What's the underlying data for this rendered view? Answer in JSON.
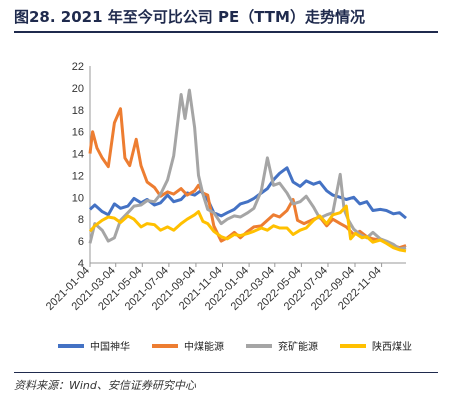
{
  "figure_title": "图28. 2021 年至今可比公司 PE（TTM）走势情况",
  "source_note": "资料来源：Wind、安信证券研究中心",
  "chart_data": {
    "type": "line",
    "title": "",
    "xlabel": "",
    "ylabel": "",
    "ylim": [
      4,
      22
    ],
    "yticks": [
      4,
      6,
      8,
      10,
      12,
      14,
      16,
      18,
      20,
      22
    ],
    "xlim": [
      "2021-01-04",
      "2022-12-30"
    ],
    "xticks": [
      "2021-01-04",
      "2021-03-04",
      "2021-05-04",
      "2021-07-04",
      "2021-09-04",
      "2021-11-04",
      "2022-01-04",
      "2022-03-04",
      "2022-05-04",
      "2022-07-04",
      "2022-09-04",
      "2022-11-04"
    ],
    "grid": false,
    "legend_position": "bottom",
    "series": [
      {
        "name": "中国神华",
        "color": "#4472C4",
        "points": [
          [
            "2021-01-04",
            8.9
          ],
          [
            "2021-01-15",
            9.3
          ],
          [
            "2021-02-01",
            8.7
          ],
          [
            "2021-02-15",
            8.4
          ],
          [
            "2021-03-01",
            9.4
          ],
          [
            "2021-03-15",
            9.0
          ],
          [
            "2021-04-01",
            9.2
          ],
          [
            "2021-04-15",
            9.9
          ],
          [
            "2021-05-01",
            9.5
          ],
          [
            "2021-05-15",
            9.8
          ],
          [
            "2021-06-01",
            9.3
          ],
          [
            "2021-06-15",
            9.5
          ],
          [
            "2021-07-01",
            10.2
          ],
          [
            "2021-07-15",
            9.6
          ],
          [
            "2021-08-01",
            9.8
          ],
          [
            "2021-08-15",
            10.4
          ],
          [
            "2021-09-01",
            10.2
          ],
          [
            "2021-09-15",
            10.6
          ],
          [
            "2021-10-01",
            9.8
          ],
          [
            "2021-10-15",
            8.6
          ],
          [
            "2021-11-01",
            8.3
          ],
          [
            "2021-11-15",
            8.6
          ],
          [
            "2021-12-01",
            8.9
          ],
          [
            "2021-12-15",
            9.4
          ],
          [
            "2022-01-01",
            9.6
          ],
          [
            "2022-01-15",
            9.9
          ],
          [
            "2022-02-01",
            10.4
          ],
          [
            "2022-02-15",
            10.8
          ],
          [
            "2022-03-01",
            11.6
          ],
          [
            "2022-03-15",
            12.2
          ],
          [
            "2022-04-01",
            12.7
          ],
          [
            "2022-04-15",
            11.4
          ],
          [
            "2022-05-01",
            11.0
          ],
          [
            "2022-05-15",
            11.5
          ],
          [
            "2022-06-01",
            11.2
          ],
          [
            "2022-06-15",
            11.4
          ],
          [
            "2022-07-01",
            10.6
          ],
          [
            "2022-07-15",
            10.2
          ],
          [
            "2022-08-01",
            10.0
          ],
          [
            "2022-08-15",
            9.8
          ],
          [
            "2022-09-01",
            10.0
          ],
          [
            "2022-09-15",
            9.4
          ],
          [
            "2022-10-01",
            9.6
          ],
          [
            "2022-10-15",
            8.8
          ],
          [
            "2022-11-01",
            8.9
          ],
          [
            "2022-11-15",
            8.8
          ],
          [
            "2022-12-01",
            8.5
          ],
          [
            "2022-12-15",
            8.6
          ],
          [
            "2022-12-30",
            8.1
          ]
        ]
      },
      {
        "name": "中煤能源",
        "color": "#ED7D31",
        "points": [
          [
            "2021-01-04",
            14.0
          ],
          [
            "2021-01-10",
            16.0
          ],
          [
            "2021-01-20",
            14.5
          ],
          [
            "2021-02-01",
            13.6
          ],
          [
            "2021-02-15",
            12.8
          ],
          [
            "2021-03-01",
            16.8
          ],
          [
            "2021-03-15",
            18.1
          ],
          [
            "2021-03-25",
            13.6
          ],
          [
            "2021-04-05",
            12.9
          ],
          [
            "2021-04-20",
            15.3
          ],
          [
            "2021-05-01",
            12.9
          ],
          [
            "2021-05-15",
            11.4
          ],
          [
            "2021-06-01",
            10.9
          ],
          [
            "2021-06-15",
            10.1
          ],
          [
            "2021-07-01",
            10.5
          ],
          [
            "2021-07-15",
            10.3
          ],
          [
            "2021-08-01",
            10.8
          ],
          [
            "2021-08-15",
            10.2
          ],
          [
            "2021-09-01",
            10.6
          ],
          [
            "2021-09-10",
            11.1
          ],
          [
            "2021-09-20",
            10.4
          ],
          [
            "2021-10-01",
            10.2
          ],
          [
            "2021-10-15",
            7.4
          ],
          [
            "2021-11-01",
            6.0
          ],
          [
            "2021-11-15",
            6.3
          ],
          [
            "2021-12-01",
            6.8
          ],
          [
            "2021-12-15",
            6.3
          ],
          [
            "2022-01-01",
            6.9
          ],
          [
            "2022-01-15",
            7.3
          ],
          [
            "2022-02-01",
            7.4
          ],
          [
            "2022-02-15",
            7.9
          ],
          [
            "2022-03-01",
            8.4
          ],
          [
            "2022-03-15",
            8.2
          ],
          [
            "2022-04-01",
            8.8
          ],
          [
            "2022-04-15",
            9.8
          ],
          [
            "2022-04-25",
            7.9
          ],
          [
            "2022-05-10",
            7.6
          ],
          [
            "2022-06-01",
            8.0
          ],
          [
            "2022-06-15",
            8.2
          ],
          [
            "2022-07-01",
            7.4
          ],
          [
            "2022-07-15",
            8.0
          ],
          [
            "2022-08-01",
            7.6
          ],
          [
            "2022-08-15",
            7.3
          ],
          [
            "2022-09-01",
            6.6
          ],
          [
            "2022-09-15",
            6.9
          ],
          [
            "2022-10-01",
            6.4
          ],
          [
            "2022-10-15",
            6.2
          ],
          [
            "2022-11-01",
            6.1
          ],
          [
            "2022-11-15",
            5.9
          ],
          [
            "2022-12-01",
            5.6
          ],
          [
            "2022-12-15",
            5.4
          ],
          [
            "2022-12-30",
            5.6
          ]
        ]
      },
      {
        "name": "兖矿能源",
        "color": "#A5A5A5",
        "points": [
          [
            "2021-01-04",
            5.8
          ],
          [
            "2021-01-15",
            7.6
          ],
          [
            "2021-02-01",
            7.0
          ],
          [
            "2021-02-15",
            6.0
          ],
          [
            "2021-03-01",
            6.3
          ],
          [
            "2021-03-15",
            7.9
          ],
          [
            "2021-04-01",
            8.6
          ],
          [
            "2021-04-15",
            9.2
          ],
          [
            "2021-05-01",
            9.3
          ],
          [
            "2021-05-15",
            9.7
          ],
          [
            "2021-06-01",
            9.6
          ],
          [
            "2021-06-15",
            10.3
          ],
          [
            "2021-07-01",
            11.6
          ],
          [
            "2021-07-15",
            13.8
          ],
          [
            "2021-08-01",
            19.4
          ],
          [
            "2021-08-10",
            17.2
          ],
          [
            "2021-08-20",
            19.8
          ],
          [
            "2021-09-01",
            16.4
          ],
          [
            "2021-09-10",
            12.0
          ],
          [
            "2021-09-20",
            10.3
          ],
          [
            "2021-10-01",
            8.9
          ],
          [
            "2021-10-15",
            8.6
          ],
          [
            "2021-11-01",
            7.6
          ],
          [
            "2021-11-15",
            8.0
          ],
          [
            "2021-12-01",
            8.3
          ],
          [
            "2021-12-15",
            8.2
          ],
          [
            "2022-01-01",
            8.6
          ],
          [
            "2022-01-15",
            9.0
          ],
          [
            "2022-02-01",
            10.6
          ],
          [
            "2022-02-15",
            13.6
          ],
          [
            "2022-03-01",
            11.1
          ],
          [
            "2022-03-15",
            11.3
          ],
          [
            "2022-04-01",
            10.4
          ],
          [
            "2022-04-15",
            9.4
          ],
          [
            "2022-05-01",
            9.6
          ],
          [
            "2022-05-15",
            10.1
          ],
          [
            "2022-06-01",
            9.1
          ],
          [
            "2022-06-15",
            8.1
          ],
          [
            "2022-07-01",
            8.4
          ],
          [
            "2022-07-15",
            8.6
          ],
          [
            "2022-08-01",
            12.1
          ],
          [
            "2022-08-10",
            8.9
          ],
          [
            "2022-08-20",
            7.9
          ],
          [
            "2022-09-01",
            7.1
          ],
          [
            "2022-09-15",
            6.6
          ],
          [
            "2022-10-01",
            6.3
          ],
          [
            "2022-10-15",
            6.8
          ],
          [
            "2022-11-01",
            6.2
          ],
          [
            "2022-11-15",
            6.0
          ],
          [
            "2022-12-01",
            5.7
          ],
          [
            "2022-12-15",
            5.3
          ],
          [
            "2022-12-30",
            5.4
          ]
        ]
      },
      {
        "name": "陕西煤业",
        "color": "#FFC000",
        "points": [
          [
            "2021-01-04",
            6.9
          ],
          [
            "2021-01-15",
            7.4
          ],
          [
            "2021-02-01",
            7.9
          ],
          [
            "2021-02-15",
            8.2
          ],
          [
            "2021-03-01",
            8.1
          ],
          [
            "2021-03-15",
            7.7
          ],
          [
            "2021-04-01",
            8.3
          ],
          [
            "2021-04-15",
            8.0
          ],
          [
            "2021-05-01",
            7.3
          ],
          [
            "2021-05-15",
            7.6
          ],
          [
            "2021-06-01",
            7.5
          ],
          [
            "2021-06-15",
            7.0
          ],
          [
            "2021-07-01",
            7.3
          ],
          [
            "2021-07-15",
            7.0
          ],
          [
            "2021-08-01",
            7.6
          ],
          [
            "2021-08-15",
            8.0
          ],
          [
            "2021-09-01",
            8.4
          ],
          [
            "2021-09-10",
            8.7
          ],
          [
            "2021-09-20",
            7.8
          ],
          [
            "2021-10-01",
            7.6
          ],
          [
            "2021-10-15",
            6.9
          ],
          [
            "2021-11-01",
            6.4
          ],
          [
            "2021-11-15",
            6.2
          ],
          [
            "2021-12-01",
            6.6
          ],
          [
            "2021-12-15",
            6.5
          ],
          [
            "2022-01-01",
            6.7
          ],
          [
            "2022-01-15",
            6.9
          ],
          [
            "2022-02-01",
            7.2
          ],
          [
            "2022-02-15",
            7.0
          ],
          [
            "2022-03-01",
            7.4
          ],
          [
            "2022-03-15",
            7.2
          ],
          [
            "2022-04-01",
            7.2
          ],
          [
            "2022-04-15",
            6.6
          ],
          [
            "2022-05-01",
            7.0
          ],
          [
            "2022-05-15",
            7.2
          ],
          [
            "2022-06-01",
            7.9
          ],
          [
            "2022-06-15",
            8.3
          ],
          [
            "2022-07-01",
            7.6
          ],
          [
            "2022-07-15",
            8.4
          ],
          [
            "2022-08-01",
            8.6
          ],
          [
            "2022-08-15",
            9.2
          ],
          [
            "2022-08-25",
            6.2
          ],
          [
            "2022-09-05",
            6.7
          ],
          [
            "2022-09-20",
            6.3
          ],
          [
            "2022-10-01",
            6.4
          ],
          [
            "2022-10-15",
            5.9
          ],
          [
            "2022-11-01",
            6.1
          ],
          [
            "2022-11-15",
            5.8
          ],
          [
            "2022-12-01",
            5.4
          ],
          [
            "2022-12-15",
            5.2
          ],
          [
            "2022-12-30",
            5.1
          ]
        ]
      }
    ]
  }
}
